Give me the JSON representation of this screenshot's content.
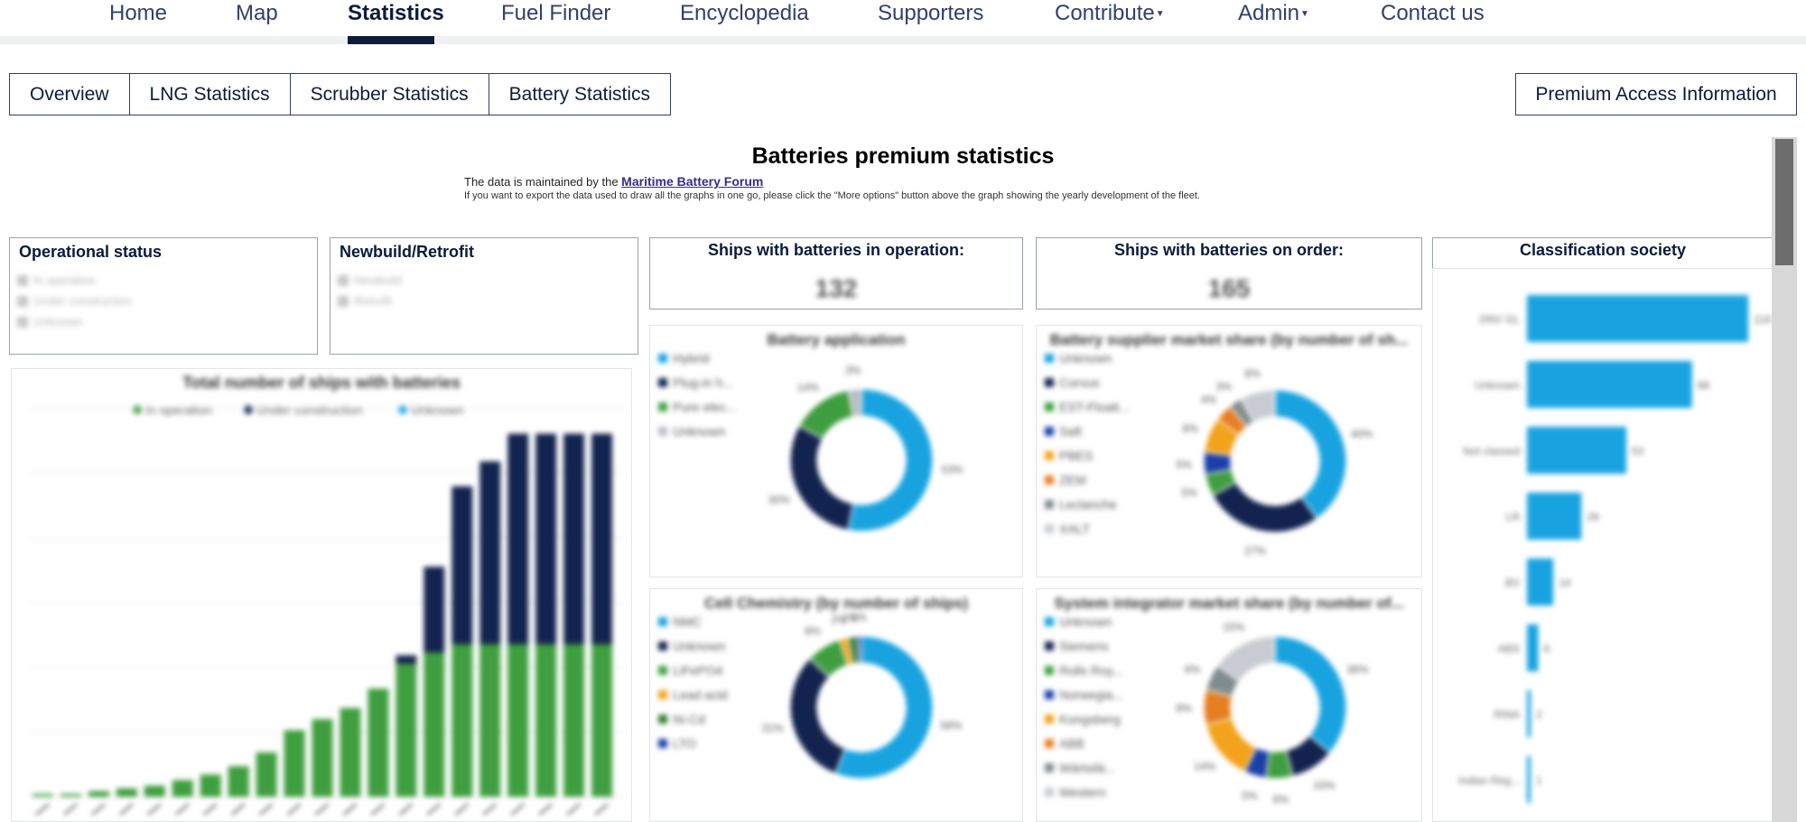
{
  "nav": {
    "items": [
      {
        "label": "Home",
        "active": false
      },
      {
        "label": "Map",
        "active": false
      },
      {
        "label": "Statistics",
        "active": true
      },
      {
        "label": "Fuel Finder",
        "active": false
      },
      {
        "label": "Encyclopedia",
        "active": false
      },
      {
        "label": "Supporters",
        "active": false
      },
      {
        "label": "Contribute",
        "active": false,
        "dropdown": true
      },
      {
        "label": "Admin",
        "active": false,
        "dropdown": true
      },
      {
        "label": "Contact us",
        "active": false
      }
    ]
  },
  "tabs": [
    "Overview",
    "LNG Statistics",
    "Scrubber Statistics",
    "Battery Statistics"
  ],
  "premium_button": "Premium Access Information",
  "report": {
    "title": "Batteries premium statistics",
    "maintained_prefix": "The data is maintained by the ",
    "maintained_link": "Maritime Battery Forum",
    "export_note": "If you want to export the data used to draw all the graphs in one go, please click the \"More options\" button above the graph showing the yearly development of the fleet."
  },
  "slicers": {
    "operational_status": {
      "title": "Operational status",
      "options": [
        "In operation",
        "Under construction",
        "Unknown"
      ]
    },
    "newbuild_retrofit": {
      "title": "Newbuild/Retrofit",
      "options": [
        "Newbuild",
        "Retrofit"
      ]
    }
  },
  "kpis": {
    "in_operation": {
      "title": "Ships with batteries in operation:",
      "value": "132"
    },
    "on_order": {
      "title": "Ships with batteries on order:",
      "value": "165"
    }
  },
  "colors": {
    "navy": "#13234f",
    "green": "#3f9e3f",
    "blue": "#18a3e0",
    "orange": "#f2a21b",
    "gray": "#b9bdc3"
  },
  "chart_data": [
    {
      "type": "bar",
      "title": "Total number of ships with batteries",
      "series": [
        {
          "name": "In operation",
          "values": [
            1,
            1,
            2,
            3,
            4,
            6,
            8,
            11,
            16,
            24,
            28,
            32,
            39,
            48,
            52,
            55,
            55,
            55,
            55,
            55,
            55
          ]
        },
        {
          "name": "Under construction",
          "values": [
            0,
            0,
            0,
            0,
            0,
            0,
            0,
            0,
            0,
            0,
            0,
            0,
            0,
            3,
            31,
            57,
            66,
            76,
            76,
            76,
            76
          ]
        },
        {
          "name": "Unknown",
          "values": [
            0,
            0,
            0,
            0,
            0,
            0,
            0,
            0,
            0,
            0,
            0,
            0,
            0,
            0,
            0,
            0,
            0,
            0,
            0,
            0,
            0
          ]
        }
      ],
      "ylim": [
        0,
        140
      ]
    },
    {
      "type": "pie",
      "title": "Battery application",
      "legend": [
        "Hybrid",
        "Plug-in h...",
        "Pure elec...",
        "Unknown"
      ],
      "values": [
        53,
        30,
        14,
        3
      ]
    },
    {
      "type": "pie",
      "title": "Battery supplier market share (by number of sh...",
      "legend": [
        "Unknown",
        "Corvus",
        "EST-Floatt...",
        "Saft",
        "PBES",
        "ZEM",
        "Leclanche",
        "XALT"
      ],
      "values": [
        40,
        27,
        5,
        5,
        8,
        4,
        3,
        8
      ]
    },
    {
      "type": "pie",
      "title": "Cell Chemistry (by number of ships)",
      "legend": [
        "NMC",
        "Unknown",
        "LiFePO4",
        "Lead acid",
        "Ni-Cd",
        "LTO"
      ],
      "values": [
        56,
        31,
        8,
        2,
        2,
        1
      ]
    },
    {
      "type": "pie",
      "title": "System integrator market share (by number of...",
      "legend": [
        "Unknown",
        "Siemens",
        "Rolls Roy...",
        "Norwegia...",
        "Kongsberg",
        "ABB",
        "Wärtsilä...",
        "Western"
      ],
      "values": [
        36,
        10,
        6,
        5,
        14,
        8,
        6,
        15
      ]
    },
    {
      "type": "bar",
      "title": "Classification society",
      "categories": [
        "DNV GL",
        "Unknown",
        "Not classed",
        "LR",
        "BV",
        "ABS",
        "RINA",
        "Indian Reg..."
      ],
      "values": [
        118,
        88,
        53,
        29,
        14,
        6,
        2,
        1
      ]
    }
  ]
}
